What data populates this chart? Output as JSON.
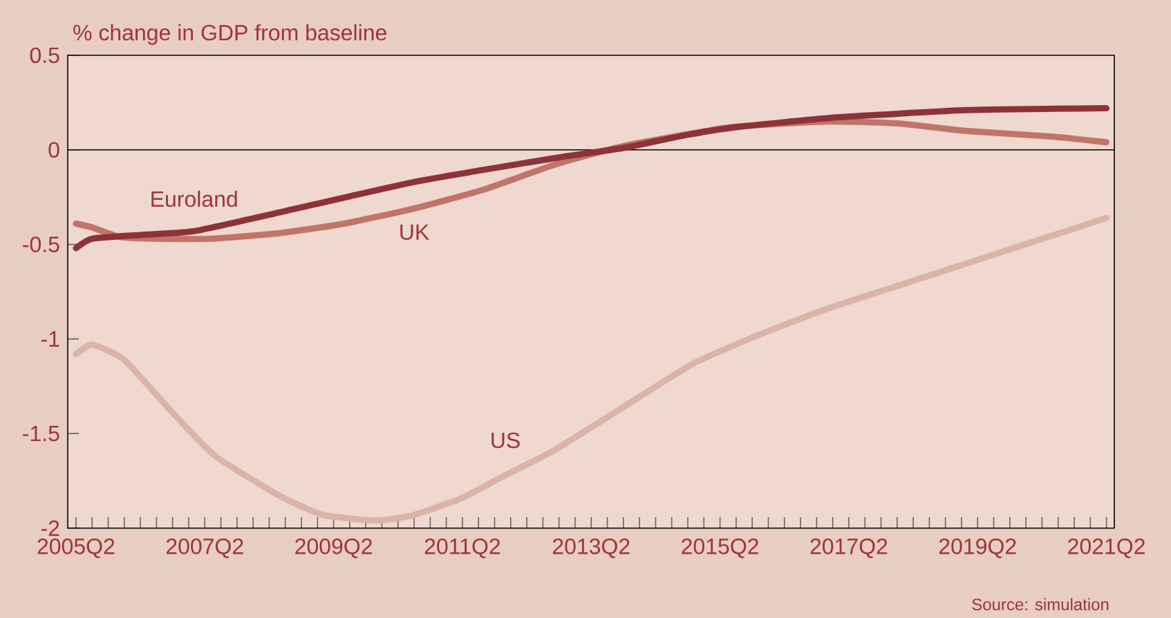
{
  "chart_data": {
    "type": "line",
    "ylabel": "% change in GDP from baseline",
    "xlim": [
      "2005-02-15",
      "2021-05-15"
    ],
    "ylim": [
      -2,
      0.5
    ],
    "xticks": [
      {
        "value": "2005-04",
        "label": "2005Q2"
      },
      {
        "value": "2005-07",
        "label": null
      },
      {
        "value": "2005-10",
        "label": null
      },
      {
        "value": "2006-01",
        "label": null
      },
      {
        "value": "2006-04",
        "label": null
      },
      {
        "value": "2006-07",
        "label": null
      },
      {
        "value": "2006-10",
        "label": null
      },
      {
        "value": "2007-01",
        "label": null
      },
      {
        "value": "2007-04",
        "label": "2007Q2"
      },
      {
        "value": "2007-07",
        "label": null
      },
      {
        "value": "2007-10",
        "label": null
      },
      {
        "value": "2008-01",
        "label": null
      },
      {
        "value": "2008-04",
        "label": null
      },
      {
        "value": "2008-07",
        "label": null
      },
      {
        "value": "2008-10",
        "label": null
      },
      {
        "value": "2009-01",
        "label": null
      },
      {
        "value": "2009-04",
        "label": "2009Q2"
      },
      {
        "value": "2009-07",
        "label": null
      },
      {
        "value": "2009-10",
        "label": null
      },
      {
        "value": "2010-01",
        "label": null
      },
      {
        "value": "2010-04",
        "label": null
      },
      {
        "value": "2010-07",
        "label": null
      },
      {
        "value": "2010-10",
        "label": null
      },
      {
        "value": "2011-01",
        "label": null
      },
      {
        "value": "2011-04",
        "label": "2011Q2"
      },
      {
        "value": "2011-07",
        "label": null
      },
      {
        "value": "2011-10",
        "label": null
      },
      {
        "value": "2012-01",
        "label": null
      },
      {
        "value": "2012-04",
        "label": null
      },
      {
        "value": "2012-07",
        "label": null
      },
      {
        "value": "2012-10",
        "label": null
      },
      {
        "value": "2013-01",
        "label": null
      },
      {
        "value": "2013-04",
        "label": "2013Q2"
      },
      {
        "value": "2013-07",
        "label": null
      },
      {
        "value": "2013-10",
        "label": null
      },
      {
        "value": "2014-01",
        "label": null
      },
      {
        "value": "2014-04",
        "label": null
      },
      {
        "value": "2014-07",
        "label": null
      },
      {
        "value": "2014-10",
        "label": null
      },
      {
        "value": "2015-01",
        "label": null
      },
      {
        "value": "2015-04",
        "label": "2015Q2"
      },
      {
        "value": "2015-07",
        "label": null
      },
      {
        "value": "2015-10",
        "label": null
      },
      {
        "value": "2016-01",
        "label": null
      },
      {
        "value": "2016-04",
        "label": null
      },
      {
        "value": "2016-07",
        "label": null
      },
      {
        "value": "2016-10",
        "label": null
      },
      {
        "value": "2017-01",
        "label": null
      },
      {
        "value": "2017-04",
        "label": "2017Q2"
      },
      {
        "value": "2017-07",
        "label": null
      },
      {
        "value": "2017-10",
        "label": null
      },
      {
        "value": "2018-01",
        "label": null
      },
      {
        "value": "2018-04",
        "label": null
      },
      {
        "value": "2018-07",
        "label": null
      },
      {
        "value": "2018-10",
        "label": null
      },
      {
        "value": "2019-01",
        "label": null
      },
      {
        "value": "2019-04",
        "label": "2019Q2"
      },
      {
        "value": "2019-07",
        "label": null
      },
      {
        "value": "2019-10",
        "label": null
      },
      {
        "value": "2020-01",
        "label": null
      },
      {
        "value": "2020-04",
        "label": null
      },
      {
        "value": "2020-07",
        "label": null
      },
      {
        "value": "2020-10",
        "label": null
      },
      {
        "value": "2021-01",
        "label": null
      },
      {
        "value": "2021-04",
        "label": "2021Q2"
      }
    ],
    "yticks": [
      0.5,
      0,
      -0.5,
      -1,
      -1.5,
      -2
    ],
    "ref_lines": [
      {
        "axis": "y",
        "value": 0,
        "color": "#000000"
      }
    ],
    "series": [
      {
        "name": "US",
        "color": "#dcb3a8",
        "x": [
          "2005-04",
          "2005-07",
          "2006-01",
          "2006-10",
          "2007-06",
          "2008-06",
          "2009-02",
          "2009-12",
          "2010-07",
          "2011-04",
          "2011-12",
          "2012-09",
          "2013-10",
          "2014-11",
          "2015-12",
          "2016-12",
          "2018-01",
          "2019-02",
          "2020-03",
          "2021-04"
        ],
        "values": [
          -1.08,
          -1.03,
          -1.11,
          -1.39,
          -1.62,
          -1.83,
          -1.93,
          -1.96,
          -1.93,
          -1.84,
          -1.72,
          -1.59,
          -1.36,
          -1.13,
          -0.97,
          -0.84,
          -0.72,
          -0.6,
          -0.48,
          -0.36
        ]
      },
      {
        "name": "UK",
        "color": "#c07568",
        "x": [
          "2005-04",
          "2005-07",
          "2005-12",
          "2006-06",
          "2007-05",
          "2008-06",
          "2009-06",
          "2010-07",
          "2011-08",
          "2012-09",
          "2013-10",
          "2015-06",
          "2016-12",
          "2018-01",
          "2019-02",
          "2020-06",
          "2021-04"
        ],
        "values": [
          -0.39,
          -0.41,
          -0.46,
          -0.47,
          -0.47,
          -0.44,
          -0.39,
          -0.31,
          -0.21,
          -0.08,
          0.02,
          0.12,
          0.15,
          0.14,
          0.1,
          0.07,
          0.04
        ]
      },
      {
        "name": "Euroland",
        "color": "#8e3239",
        "x": [
          "2005-04",
          "2005-07",
          "2006-04",
          "2007-02",
          "2008-06",
          "2010-07",
          "2012-10",
          "2013-10",
          "2014-10",
          "2015-07",
          "2017-01",
          "2019-02",
          "2021-04"
        ],
        "values": [
          -0.52,
          -0.47,
          -0.45,
          -0.43,
          -0.33,
          -0.17,
          -0.04,
          0.01,
          0.08,
          0.12,
          0.17,
          0.21,
          0.22
        ]
      }
    ],
    "annotations": [
      "Source: simulation"
    ]
  }
}
